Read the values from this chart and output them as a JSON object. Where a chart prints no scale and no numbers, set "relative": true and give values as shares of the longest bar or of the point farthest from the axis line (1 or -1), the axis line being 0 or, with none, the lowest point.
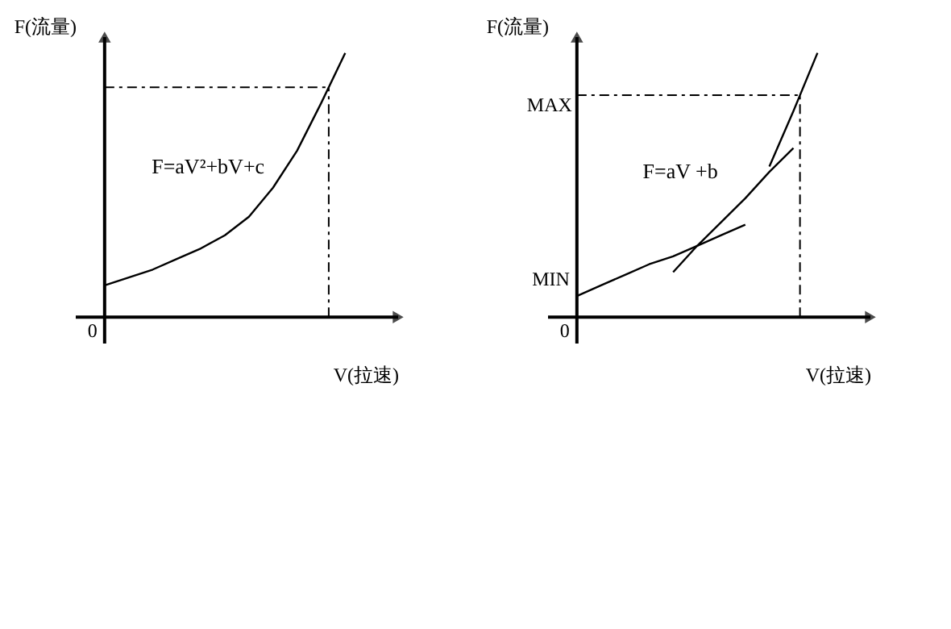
{
  "chart_data": [
    {
      "type": "line",
      "relative": true,
      "xlabel": "V(拉速)",
      "ylabel": "F(流量)",
      "legend": false,
      "marker": "none",
      "line_style": "solid",
      "categories": [
        null,
        null,
        null,
        null,
        null,
        null,
        null,
        null,
        null,
        null,
        null
      ],
      "series": [
        {
          "color": "#000000",
          "values": [
            0.12,
            0.15,
            0.18,
            0.22,
            0.26,
            0.31,
            0.38,
            0.49,
            0.63,
            0.81,
            1.0
          ]
        }
      ],
      "ref_lines": [
        {
          "axis": "y",
          "value": 0.87,
          "line_style": "dashed",
          "color": "#000000"
        }
      ],
      "annotations": [
        "F=aV²+bV+c",
        "0"
      ]
    },
    {
      "type": "line",
      "relative": true,
      "xlabel": "V(拉速)",
      "ylabel": "F(流量)",
      "legend": false,
      "marker": "none",
      "line_style": "solid",
      "categories": [
        null,
        null,
        null,
        null,
        null,
        null,
        null,
        null,
        null,
        null,
        null
      ],
      "series": [
        {
          "color": "#000000",
          "values": [
            0.08,
            0.12,
            0.16,
            0.2,
            0.23,
            0.27,
            0.31,
            0.35,
            null,
            null,
            null
          ]
        },
        {
          "color": "#000000",
          "values": [
            null,
            null,
            null,
            null,
            0.17,
            0.27,
            0.36,
            0.45,
            0.55,
            0.64,
            null
          ]
        },
        {
          "color": "#000000",
          "values": [
            null,
            null,
            null,
            null,
            null,
            null,
            null,
            null,
            0.57,
            0.78,
            1.0
          ]
        }
      ],
      "ref_lines": [
        {
          "axis": "y",
          "value": 0.84,
          "label": "MAX",
          "line_style": "dashed",
          "color": "#000000"
        }
      ],
      "annotations": [
        "F=aV +b",
        "MIN",
        "0"
      ]
    }
  ]
}
